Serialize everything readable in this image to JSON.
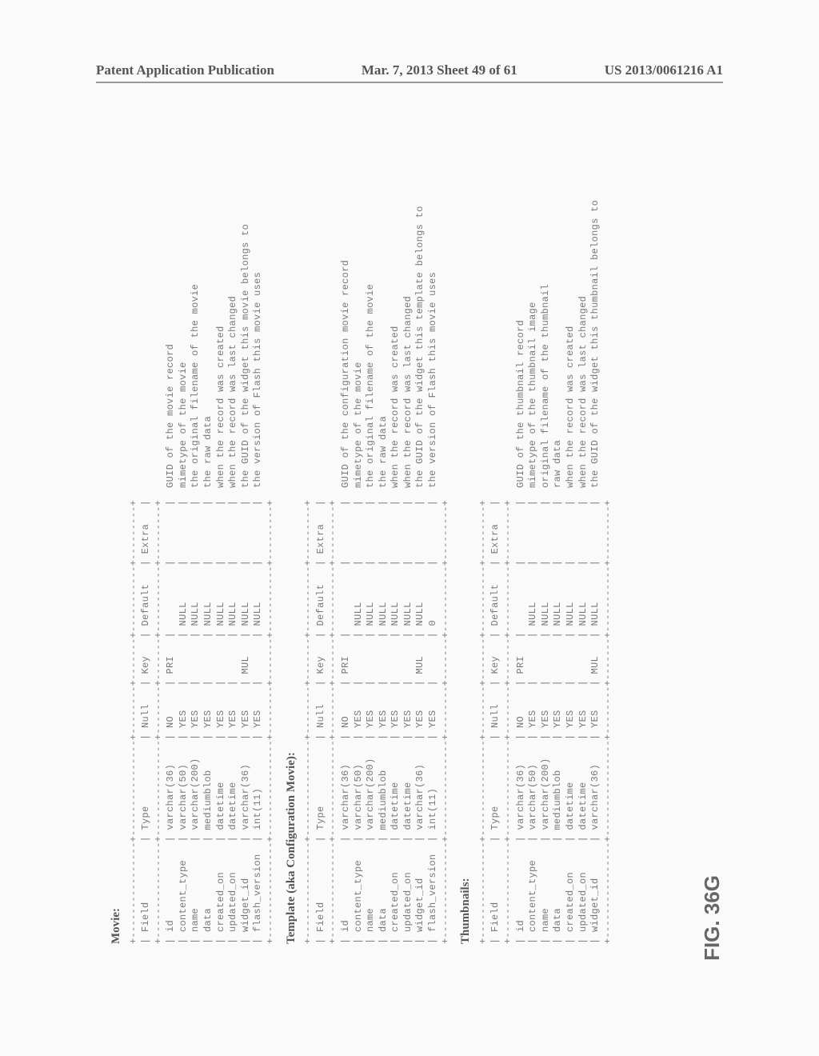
{
  "header": {
    "left": "Patent Application Publication",
    "center": "Mar. 7, 2013  Sheet 49 of 61",
    "right": "US 2013/0061216 A1"
  },
  "figure_label": "FIG. 36G",
  "sections": [
    {
      "title": "Movie:",
      "columns": [
        "Field",
        "Type",
        "Null",
        "Key",
        "Default",
        "Extra"
      ],
      "rows": [
        {
          "field": "id",
          "type": "varchar(36)",
          "null": "NO",
          "key": "PRI",
          "default": "",
          "extra": "",
          "comment": "GUID of the movie record"
        },
        {
          "field": "content_type",
          "type": "varchar(50)",
          "null": "YES",
          "key": "",
          "default": "NULL",
          "extra": "",
          "comment": "mimetype of the movie"
        },
        {
          "field": "name",
          "type": "varchar(200)",
          "null": "YES",
          "key": "",
          "default": "NULL",
          "extra": "",
          "comment": "the original filename of the movie"
        },
        {
          "field": "data",
          "type": "mediumblob",
          "null": "YES",
          "key": "",
          "default": "NULL",
          "extra": "",
          "comment": "the raw data"
        },
        {
          "field": "created_on",
          "type": "datetime",
          "null": "YES",
          "key": "",
          "default": "NULL",
          "extra": "",
          "comment": "when the record was created"
        },
        {
          "field": "updated_on",
          "type": "datetime",
          "null": "YES",
          "key": "",
          "default": "NULL",
          "extra": "",
          "comment": "when the record was last changed"
        },
        {
          "field": "widget_id",
          "type": "varchar(36)",
          "null": "YES",
          "key": "MUL",
          "default": "NULL",
          "extra": "",
          "comment": "the GUID of the widget this movie belongs to"
        },
        {
          "field": "flash_version",
          "type": "int(11)",
          "null": "YES",
          "key": "",
          "default": "NULL",
          "extra": "",
          "comment": "the version of Flash this movie uses"
        }
      ]
    },
    {
      "title": "Template (aka Configuration Movie):",
      "columns": [
        "Field",
        "Type",
        "Null",
        "Key",
        "Default",
        "Extra"
      ],
      "rows": [
        {
          "field": "id",
          "type": "varchar(36)",
          "null": "NO",
          "key": "PRI",
          "default": "",
          "extra": "",
          "comment": "GUID of the configuration movie record"
        },
        {
          "field": "content_type",
          "type": "varchar(50)",
          "null": "YES",
          "key": "",
          "default": "NULL",
          "extra": "",
          "comment": "mimetype of the movie"
        },
        {
          "field": "name",
          "type": "varchar(200)",
          "null": "YES",
          "key": "",
          "default": "NULL",
          "extra": "",
          "comment": "the original filename of the movie"
        },
        {
          "field": "data",
          "type": "mediumblob",
          "null": "YES",
          "key": "",
          "default": "NULL",
          "extra": "",
          "comment": "the raw data"
        },
        {
          "field": "created_on",
          "type": "datetime",
          "null": "YES",
          "key": "",
          "default": "NULL",
          "extra": "",
          "comment": "when the record was created"
        },
        {
          "field": "updated_on",
          "type": "datetime",
          "null": "YES",
          "key": "",
          "default": "NULL",
          "extra": "",
          "comment": "when the record was last changed"
        },
        {
          "field": "widget_id",
          "type": "varchar(36)",
          "null": "YES",
          "key": "MUL",
          "default": "NULL",
          "extra": "",
          "comment": "the GUID of the widget this template belongs to"
        },
        {
          "field": "flash_version",
          "type": "int(11)",
          "null": "YES",
          "key": "",
          "default": "0",
          "extra": "",
          "comment": "the version of Flash this movie uses"
        }
      ]
    },
    {
      "title": "Thumbnails:",
      "columns": [
        "Field",
        "Type",
        "Null",
        "Key",
        "Default",
        "Extra"
      ],
      "rows": [
        {
          "field": "id",
          "type": "varchar(36)",
          "null": "NO",
          "key": "PRI",
          "default": "",
          "extra": "",
          "comment": "GUID of the thumbnail record"
        },
        {
          "field": "content_type",
          "type": "varchar(50)",
          "null": "YES",
          "key": "",
          "default": "NULL",
          "extra": "",
          "comment": "mimetype of the thumbnail image"
        },
        {
          "field": "name",
          "type": "varchar(200)",
          "null": "YES",
          "key": "",
          "default": "NULL",
          "extra": "",
          "comment": "original filename of the thumbnail"
        },
        {
          "field": "data",
          "type": "mediumblob",
          "null": "YES",
          "key": "",
          "default": "NULL",
          "extra": "",
          "comment": "raw data"
        },
        {
          "field": "created_on",
          "type": "datetime",
          "null": "YES",
          "key": "",
          "default": "NULL",
          "extra": "",
          "comment": "when the record was created"
        },
        {
          "field": "updated_on",
          "type": "datetime",
          "null": "YES",
          "key": "",
          "default": "NULL",
          "extra": "",
          "comment": "when the record was last changed"
        },
        {
          "field": "widget_id",
          "type": "varchar(36)",
          "null": "YES",
          "key": "MUL",
          "default": "NULL",
          "extra": "",
          "comment": "the GUID of the widget this thumbnail belongs to"
        }
      ]
    }
  ],
  "style": {
    "bg": "#fafafa",
    "text_color": "#777",
    "col_widths": {
      "field": 14,
      "type": 14,
      "null": 6,
      "key": 5,
      "default": 9,
      "extra": 7
    }
  }
}
